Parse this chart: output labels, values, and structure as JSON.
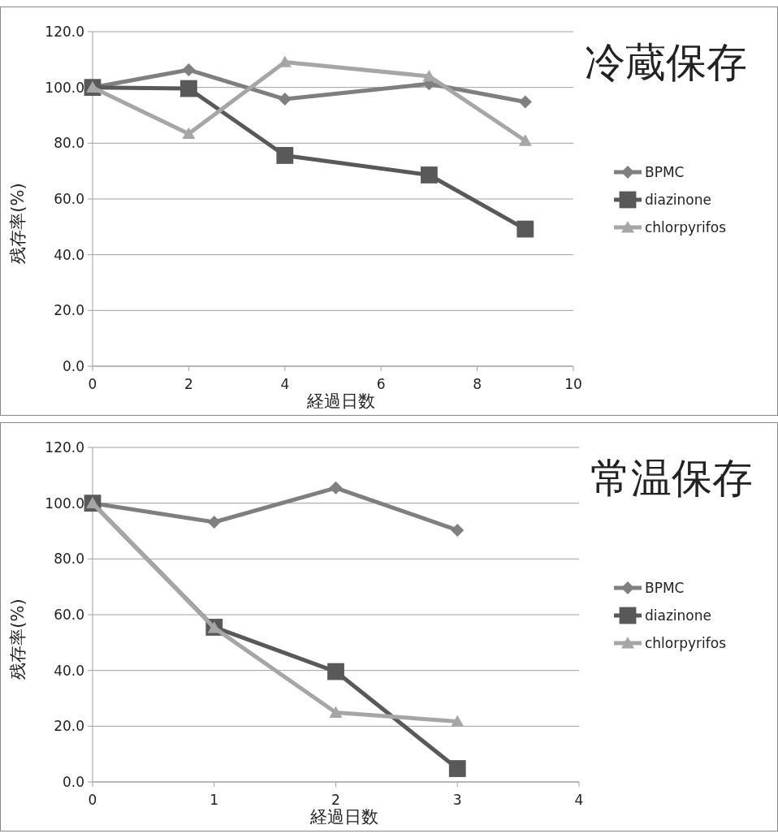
{
  "chart_data": [
    {
      "type": "line",
      "title": "冷蔵保存",
      "xlabel": "経過日数",
      "ylabel": "残存率(%)",
      "legend": "right",
      "grid": "y",
      "xlim": [
        0,
        10
      ],
      "xticks": [
        0,
        2,
        4,
        6,
        8,
        10
      ],
      "ylim": [
        0,
        120
      ],
      "yticks": [
        {
          "value": 0,
          "label": "0.0"
        },
        {
          "value": 20,
          "label": "20.0"
        },
        {
          "value": 40,
          "label": "40.0"
        },
        {
          "value": 60,
          "label": "60.0"
        },
        {
          "value": 80,
          "label": "80.0"
        },
        {
          "value": 100,
          "label": "100.0"
        },
        {
          "value": 120,
          "label": "120.0"
        }
      ],
      "series": [
        {
          "name": "BPMC",
          "color": "#7f7f7f",
          "marker": "diamond",
          "x": [
            0,
            2,
            4,
            7,
            9
          ],
          "values": [
            100,
            106.3,
            95.8,
            101.3,
            94.8
          ]
        },
        {
          "name": "diazinone",
          "color": "#595959",
          "marker": "square",
          "x": [
            0,
            2,
            4,
            7,
            9
          ],
          "values": [
            100,
            99.6,
            75.6,
            68.6,
            49.2
          ]
        },
        {
          "name": "chlorpyrifos",
          "color": "#a6a6a6",
          "marker": "triangle",
          "x": [
            0,
            2,
            4,
            7,
            9
          ],
          "values": [
            100,
            83.4,
            109.1,
            104,
            80.9
          ]
        }
      ]
    },
    {
      "type": "line",
      "title": "常温保存",
      "xlabel": "経過日数",
      "ylabel": "残存率(%)",
      "legend": "right",
      "grid": "y",
      "xlim": [
        0,
        4
      ],
      "xticks": [
        0,
        1,
        2,
        3,
        4
      ],
      "ylim": [
        0,
        120
      ],
      "yticks": [
        {
          "value": 0,
          "label": "0.0"
        },
        {
          "value": 20,
          "label": "20.0"
        },
        {
          "value": 40,
          "label": "40.0"
        },
        {
          "value": 60,
          "label": "60.0"
        },
        {
          "value": 80,
          "label": "80.0"
        },
        {
          "value": 100,
          "label": "100.0"
        },
        {
          "value": 120,
          "label": "120.0"
        }
      ],
      "series": [
        {
          "name": "BPMC",
          "color": "#7f7f7f",
          "marker": "diamond",
          "x": [
            0,
            1,
            2,
            3
          ],
          "values": [
            100,
            93.2,
            105.5,
            90.3
          ]
        },
        {
          "name": "diazinone",
          "color": "#595959",
          "marker": "square",
          "x": [
            0,
            1,
            2,
            3
          ],
          "values": [
            100,
            55.5,
            39.6,
            4.8
          ]
        },
        {
          "name": "chlorpyrifos",
          "color": "#a6a6a6",
          "marker": "triangle",
          "x": [
            0,
            1,
            2,
            3
          ],
          "values": [
            100,
            55.3,
            24.9,
            21.7
          ]
        }
      ]
    }
  ]
}
